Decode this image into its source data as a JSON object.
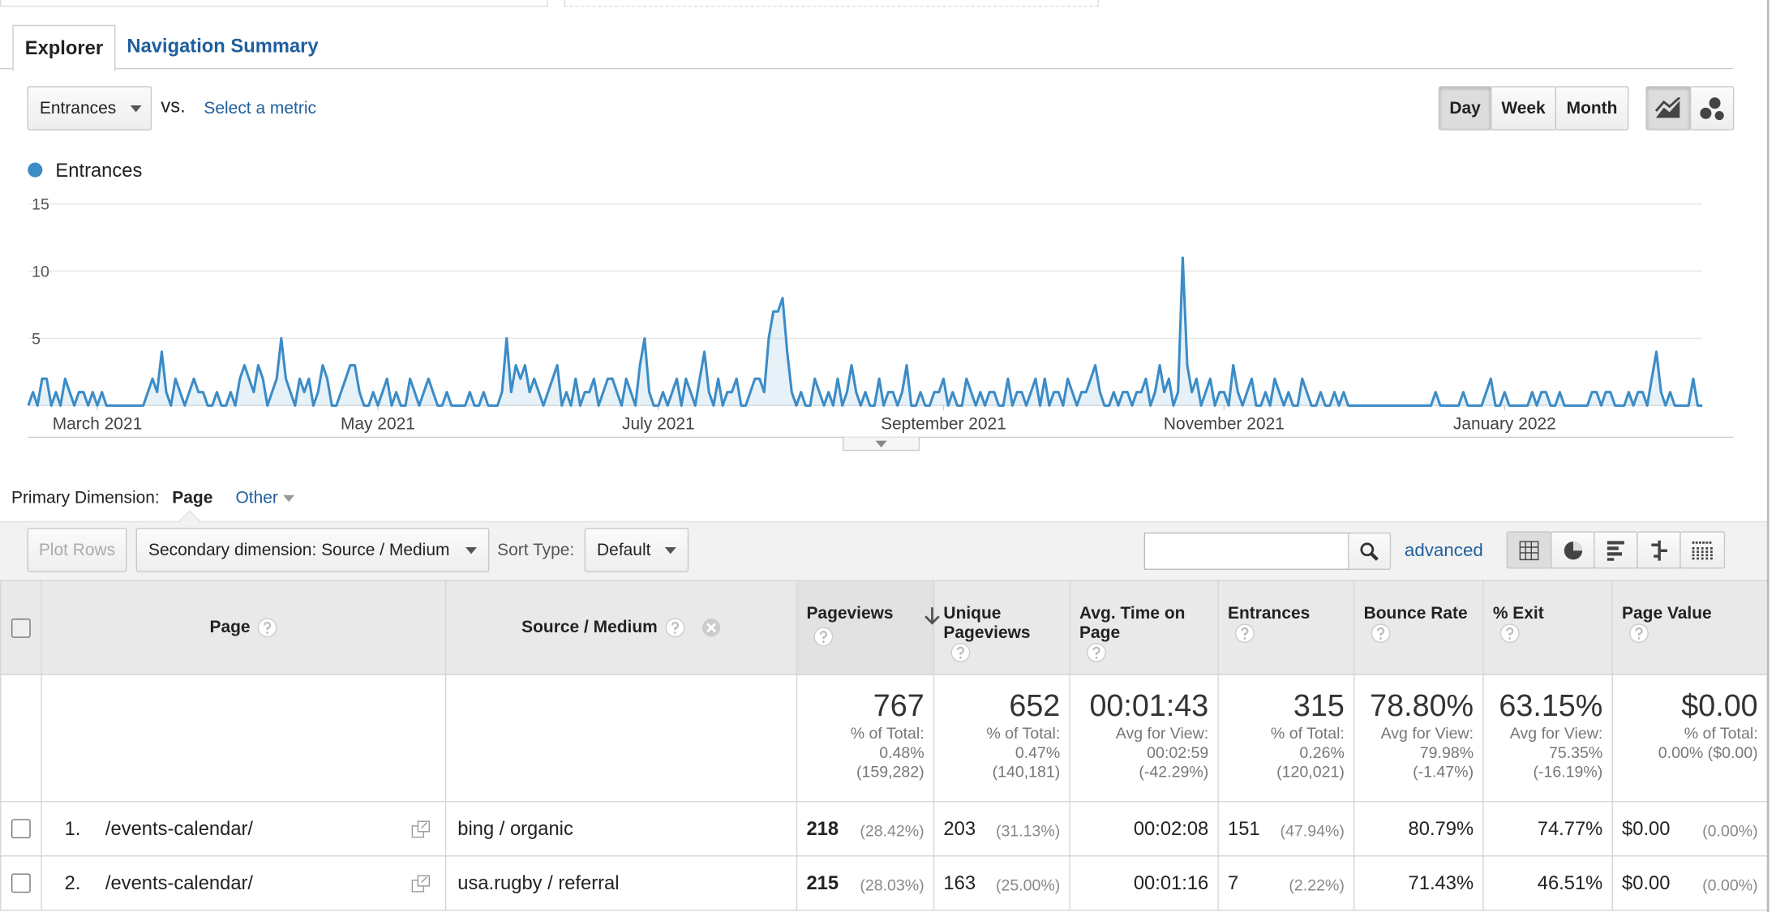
{
  "tabs": [
    "Explorer",
    "Navigation Summary"
  ],
  "metric_picker": {
    "selected": "Entrances",
    "vs": "vs.",
    "select_metric": "Select a metric"
  },
  "interval_buttons": [
    "Day",
    "Week",
    "Month"
  ],
  "chart_data": {
    "type": "line",
    "series": [
      {
        "name": "Entrances",
        "color": "#3b8cc7",
        "values": [
          0,
          1,
          0,
          2,
          2,
          0,
          1,
          0,
          2,
          1,
          0,
          1,
          1,
          0,
          1,
          0,
          1,
          0,
          0,
          0,
          0,
          0,
          0,
          0,
          0,
          0,
          1,
          2,
          1,
          4,
          1,
          0,
          2,
          1,
          0,
          1,
          2,
          1,
          1,
          0,
          0,
          1,
          0,
          0,
          1,
          0,
          2,
          3,
          2,
          1,
          3,
          2,
          0,
          1,
          2,
          5,
          2,
          1,
          0,
          2,
          1,
          2,
          0,
          1,
          3,
          2,
          0,
          0,
          1,
          2,
          3,
          3,
          1,
          0,
          0,
          1,
          0,
          1,
          2,
          0,
          1,
          0,
          0,
          2,
          1,
          0,
          1,
          2,
          1,
          0,
          0,
          1,
          0,
          0,
          0,
          0,
          1,
          0,
          0,
          1,
          0,
          0,
          0,
          1,
          5,
          1,
          3,
          2,
          3,
          1,
          2,
          1,
          0,
          1,
          2,
          3,
          0,
          1,
          0,
          2,
          0,
          1,
          1,
          2,
          0,
          1,
          2,
          2,
          1,
          0,
          2,
          1,
          0,
          3,
          5,
          1,
          0,
          0,
          1,
          0,
          1,
          2,
          0,
          2,
          1,
          0,
          2,
          4,
          1,
          0,
          2,
          0,
          1,
          1,
          2,
          0,
          0,
          1,
          2,
          2,
          1,
          5,
          7,
          7,
          8,
          4,
          1,
          0,
          1,
          0,
          0,
          2,
          1,
          0,
          1,
          0,
          2,
          0,
          1,
          3,
          1,
          0,
          1,
          0,
          0,
          2,
          0,
          1,
          1,
          0,
          1,
          3,
          0,
          0,
          1,
          0,
          0,
          1,
          1,
          2,
          0,
          1,
          0,
          0,
          2,
          1,
          0,
          1,
          0,
          1,
          1,
          0,
          0,
          2,
          0,
          1,
          1,
          0,
          1,
          2,
          0,
          2,
          0,
          1,
          1,
          0,
          2,
          1,
          0,
          1,
          1,
          2,
          3,
          1,
          0,
          0,
          1,
          0,
          1,
          1,
          0,
          1,
          1,
          2,
          0,
          1,
          3,
          1,
          2,
          0,
          1,
          11,
          3,
          1,
          2,
          0,
          1,
          2,
          0,
          1,
          1,
          0,
          3,
          1,
          0,
          1,
          2,
          0,
          0,
          1,
          0,
          2,
          1,
          0,
          1,
          0,
          0,
          2,
          1,
          0,
          0,
          1,
          0,
          0,
          1,
          0,
          1,
          0,
          0,
          0,
          0,
          0,
          0,
          0,
          0,
          0,
          0,
          0,
          0,
          0,
          0,
          0,
          0,
          0,
          0,
          0,
          1,
          0,
          0,
          0,
          0,
          0,
          1,
          0,
          0,
          0,
          0,
          1,
          2,
          0,
          0,
          1,
          0,
          0,
          0,
          0,
          0,
          1,
          0,
          1,
          1,
          0,
          0,
          1,
          0,
          0,
          0,
          0,
          0,
          0,
          1,
          1,
          0,
          1,
          1,
          0,
          0,
          0,
          1,
          0,
          1,
          1,
          0,
          2,
          4,
          1,
          0,
          1,
          0,
          0,
          0,
          0,
          2,
          0,
          0
        ]
      }
    ],
    "xlim": [
      0,
      364
    ],
    "xticks": [
      {
        "value": 15,
        "label": "March 2021"
      },
      {
        "value": 76,
        "label": "May 2021"
      },
      {
        "value": 137,
        "label": "July 2021"
      },
      {
        "value": 199,
        "label": "September 2021"
      },
      {
        "value": 260,
        "label": "November 2021"
      },
      {
        "value": 321,
        "label": "January 2022"
      }
    ],
    "ylim": [
      0,
      15
    ],
    "yticks": [
      5,
      10,
      15
    ],
    "grid": true
  },
  "primary_dimension": {
    "label": "Primary Dimension:",
    "active": "Page",
    "other": "Other"
  },
  "toolbar": {
    "plot_rows": "Plot Rows",
    "secondary": "Secondary dimension: Source / Medium",
    "sort_label": "Sort Type:",
    "sort_value": "Default",
    "advanced": "advanced"
  },
  "table": {
    "headers": [
      "Page",
      "Source / Medium",
      "Pageviews",
      "Unique Pageviews",
      "Avg. Time on Page",
      "Entrances",
      "Bounce Rate",
      "% Exit",
      "Page Value"
    ],
    "totals": [
      {
        "main": "767",
        "detail": [
          "% of Total:",
          "0.48%",
          "(159,282)"
        ]
      },
      {
        "main": "652",
        "detail": [
          "% of Total:",
          "0.47%",
          "(140,181)"
        ]
      },
      {
        "main": "00:01:43",
        "detail": [
          "Avg for View:",
          "00:02:59",
          "(-42.29%)"
        ]
      },
      {
        "main": "315",
        "detail": [
          "% of Total:",
          "0.26%",
          "(120,021)"
        ]
      },
      {
        "main": "78.80%",
        "detail": [
          "Avg for View:",
          "79.98%",
          "(-1.47%)"
        ]
      },
      {
        "main": "63.15%",
        "detail": [
          "Avg for View:",
          "75.35%",
          "(-16.19%)"
        ]
      },
      {
        "main": "$0.00",
        "detail": [
          "% of Total:",
          "0.00% ($0.00)"
        ]
      }
    ],
    "rows": [
      {
        "index": "1.",
        "page": "/events-calendar/",
        "source": "bing / organic",
        "cells": [
          [
            "218",
            "(28.42%)"
          ],
          [
            "203",
            "(31.13%)"
          ],
          [
            "00:02:08"
          ],
          [
            "151",
            "(47.94%)"
          ],
          [
            "80.79%"
          ],
          [
            "74.77%"
          ],
          [
            "$0.00",
            "(0.00%)"
          ]
        ]
      },
      {
        "index": "2.",
        "page": "/events-calendar/",
        "source": "usa.rugby / referral",
        "cells": [
          [
            "215",
            "(28.03%)"
          ],
          [
            "163",
            "(25.00%)"
          ],
          [
            "00:01:16"
          ],
          [
            "7",
            "(2.22%)"
          ],
          [
            "71.43%"
          ],
          [
            "46.51%"
          ],
          [
            "$0.00",
            "(0.00%)"
          ]
        ]
      }
    ]
  }
}
